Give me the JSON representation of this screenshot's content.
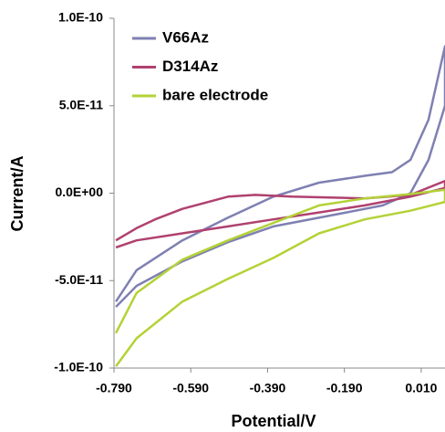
{
  "chart_data": {
    "type": "line",
    "x_label": "Potential/V",
    "y_label": "Current/A",
    "xlim": [
      -0.79,
      0.072
    ],
    "ylim": [
      -1e-10,
      1e-10
    ],
    "xticks": [
      {
        "value": -0.79,
        "label": "-0.790"
      },
      {
        "value": -0.59,
        "label": "-0.590"
      },
      {
        "value": -0.39,
        "label": "-0.390"
      },
      {
        "value": -0.19,
        "label": "-0.190"
      },
      {
        "value": 0.01,
        "label": "0.010"
      }
    ],
    "yticks": [
      {
        "value": 1e-10,
        "label": "1.0E-10"
      },
      {
        "value": 5e-11,
        "label": "5.0E-11"
      },
      {
        "value": 0,
        "label": "0.0E+00"
      },
      {
        "value": -5e-11,
        "label": "-5.0E-11"
      },
      {
        "value": -1e-10,
        "label": "-1.0E-10"
      }
    ],
    "grid": false,
    "legend": "upper left",
    "series": [
      {
        "name": "V66Az",
        "color": "#7f80b2",
        "x": [
          -0.785,
          -0.731,
          -0.612,
          -0.493,
          -0.375,
          -0.256,
          -0.137,
          -0.066,
          -0.018,
          0.029,
          0.072,
          0.072,
          0.029,
          -0.018,
          -0.09,
          -0.185,
          -0.375,
          -0.493,
          -0.612,
          -0.731,
          -0.785
        ],
        "values": [
          -6.2e-11,
          -4.4e-11,
          -2.7e-11,
          -1.4e-11,
          -2e-12,
          6e-12,
          9.9e-12,
          1.2e-11,
          1.9e-11,
          4.2e-11,
          8.4e-11,
          5e-11,
          1.9e-11,
          0,
          -7e-12,
          -1.1e-11,
          -1.9e-11,
          -2.8e-11,
          -3.9e-11,
          -5.3e-11,
          -6.5e-11
        ]
      },
      {
        "name": "D314Az",
        "color": "#b0416f",
        "x": [
          -0.785,
          -0.731,
          -0.683,
          -0.612,
          -0.493,
          -0.422,
          -0.327,
          -0.137,
          -0.018,
          0.072,
          0.072,
          -0.018,
          -0.137,
          -0.256,
          -0.375,
          -0.493,
          -0.612,
          -0.731,
          -0.785
        ],
        "values": [
          -2.7e-11,
          -2e-11,
          -1.5e-11,
          -9e-12,
          -2e-12,
          -1e-12,
          -2e-12,
          -3e-12,
          -1e-12,
          7e-12,
          3e-12,
          -2e-12,
          -7e-12,
          -1.1e-11,
          -1.5e-11,
          -1.9e-11,
          -2.3e-11,
          -2.7e-11,
          -3.1e-11
        ]
      },
      {
        "name": "bare electrode",
        "color": "#b3d236",
        "x": [
          -0.785,
          -0.731,
          -0.612,
          -0.493,
          -0.375,
          -0.256,
          -0.137,
          -0.018,
          0.072,
          0.072,
          -0.018,
          -0.137,
          -0.256,
          -0.375,
          -0.493,
          -0.612,
          -0.731,
          -0.785
        ],
        "values": [
          -8e-11,
          -5.7e-11,
          -3.8e-11,
          -2.7e-11,
          -1.7e-11,
          -7e-12,
          -3e-12,
          -5e-13,
          2e-12,
          -5e-12,
          -1e-11,
          -1.5e-11,
          -2.3e-11,
          -3.7e-11,
          -4.9e-11,
          -6.2e-11,
          -8.3e-11,
          -9.9e-11
        ]
      }
    ]
  }
}
